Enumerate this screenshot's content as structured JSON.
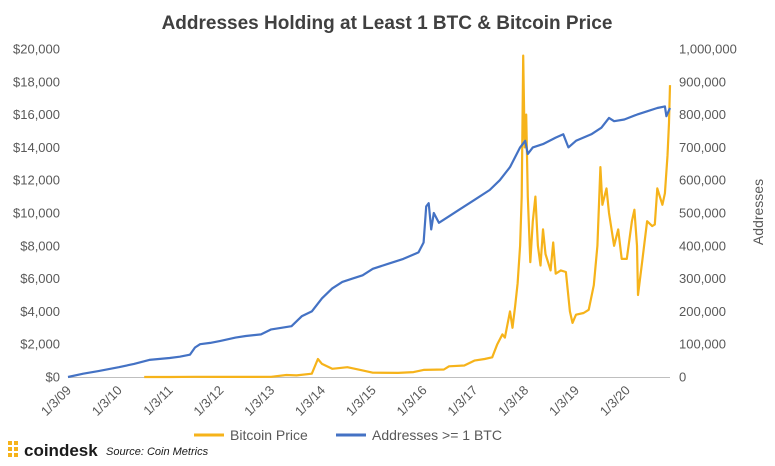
{
  "brand": {
    "name": "coindesk",
    "source": "Source: Coin Metrics",
    "logo_icon": "coindesk-logo-icon",
    "logo_color": "#f6b31a"
  },
  "chart_data": {
    "type": "line",
    "title": "Addresses Holding at Least 1 BTC & Bitcoin Price",
    "xlabel": "",
    "ylabel_left": "",
    "ylabel_right": "Addresses",
    "x_ticks": [
      "1/3/09",
      "1/3/10",
      "1/3/11",
      "1/3/12",
      "1/3/13",
      "1/3/14",
      "1/3/15",
      "1/3/16",
      "1/3/17",
      "1/3/18",
      "1/3/19",
      "1/3/20"
    ],
    "x_range": [
      2009.0,
      2020.85
    ],
    "y_left": {
      "min": 0,
      "max": 20000,
      "step": 2000,
      "tick_labels": [
        "$0",
        "$2,000",
        "$4,000",
        "$6,000",
        "$8,000",
        "$10,000",
        "$12,000",
        "$14,000",
        "$16,000",
        "$18,000",
        "$20,000"
      ]
    },
    "y_right": {
      "min": 0,
      "max": 1000000,
      "step": 100000,
      "tick_labels": [
        "0",
        "100,000",
        "200,000",
        "300,000",
        "400,000",
        "500,000",
        "600,000",
        "700,000",
        "800,000",
        "900,000",
        "1,000,000"
      ]
    },
    "legend": {
      "position": "bottom"
    },
    "grid": false,
    "series": [
      {
        "name": "Bitcoin Price",
        "axis": "left",
        "color": "#f6b31a",
        "points": [
          [
            2010.5,
            0
          ],
          [
            2011.0,
            0
          ],
          [
            2011.5,
            15
          ],
          [
            2012.0,
            5
          ],
          [
            2012.5,
            7
          ],
          [
            2013.0,
            13
          ],
          [
            2013.3,
            120
          ],
          [
            2013.5,
            100
          ],
          [
            2013.8,
            200
          ],
          [
            2013.92,
            1100
          ],
          [
            2014.0,
            800
          ],
          [
            2014.2,
            500
          ],
          [
            2014.5,
            600
          ],
          [
            2014.8,
            400
          ],
          [
            2015.0,
            260
          ],
          [
            2015.5,
            250
          ],
          [
            2015.8,
            300
          ],
          [
            2016.0,
            430
          ],
          [
            2016.4,
            460
          ],
          [
            2016.5,
            650
          ],
          [
            2016.8,
            700
          ],
          [
            2017.0,
            1000
          ],
          [
            2017.2,
            1100
          ],
          [
            2017.35,
            1200
          ],
          [
            2017.45,
            2000
          ],
          [
            2017.55,
            2600
          ],
          [
            2017.6,
            2400
          ],
          [
            2017.7,
            4000
          ],
          [
            2017.75,
            3000
          ],
          [
            2017.8,
            4300
          ],
          [
            2017.85,
            5700
          ],
          [
            2017.9,
            8000
          ],
          [
            2017.93,
            11000
          ],
          [
            2017.96,
            19600
          ],
          [
            2017.99,
            14000
          ],
          [
            2018.02,
            16000
          ],
          [
            2018.05,
            11000
          ],
          [
            2018.1,
            7000
          ],
          [
            2018.15,
            9500
          ],
          [
            2018.2,
            11000
          ],
          [
            2018.25,
            8000
          ],
          [
            2018.3,
            6800
          ],
          [
            2018.35,
            9000
          ],
          [
            2018.4,
            7500
          ],
          [
            2018.5,
            6500
          ],
          [
            2018.55,
            8200
          ],
          [
            2018.6,
            6300
          ],
          [
            2018.7,
            6500
          ],
          [
            2018.8,
            6400
          ],
          [
            2018.88,
            4000
          ],
          [
            2018.93,
            3300
          ],
          [
            2019.0,
            3800
          ],
          [
            2019.15,
            3900
          ],
          [
            2019.25,
            4100
          ],
          [
            2019.35,
            5600
          ],
          [
            2019.42,
            8000
          ],
          [
            2019.48,
            12800
          ],
          [
            2019.52,
            10500
          ],
          [
            2019.6,
            11500
          ],
          [
            2019.65,
            10000
          ],
          [
            2019.75,
            8000
          ],
          [
            2019.83,
            9000
          ],
          [
            2019.9,
            7200
          ],
          [
            2020.0,
            7200
          ],
          [
            2020.1,
            9500
          ],
          [
            2020.15,
            10200
          ],
          [
            2020.2,
            8000
          ],
          [
            2020.22,
            5000
          ],
          [
            2020.3,
            7000
          ],
          [
            2020.4,
            9500
          ],
          [
            2020.5,
            9200
          ],
          [
            2020.55,
            9300
          ],
          [
            2020.6,
            11500
          ],
          [
            2020.7,
            10500
          ],
          [
            2020.75,
            11200
          ],
          [
            2020.8,
            13500
          ],
          [
            2020.83,
            15500
          ],
          [
            2020.85,
            17800
          ]
        ]
      },
      {
        "name": "Addresses >= 1 BTC",
        "axis": "right",
        "color": "#4472c4",
        "points": [
          [
            2009.0,
            0
          ],
          [
            2009.3,
            10000
          ],
          [
            2009.6,
            18000
          ],
          [
            2010.0,
            30000
          ],
          [
            2010.3,
            40000
          ],
          [
            2010.6,
            52000
          ],
          [
            2011.0,
            58000
          ],
          [
            2011.2,
            62000
          ],
          [
            2011.4,
            68000
          ],
          [
            2011.5,
            90000
          ],
          [
            2011.6,
            100000
          ],
          [
            2011.8,
            104000
          ],
          [
            2012.0,
            110000
          ],
          [
            2012.3,
            120000
          ],
          [
            2012.5,
            125000
          ],
          [
            2012.8,
            130000
          ],
          [
            2013.0,
            145000
          ],
          [
            2013.2,
            150000
          ],
          [
            2013.4,
            155000
          ],
          [
            2013.6,
            185000
          ],
          [
            2013.8,
            200000
          ],
          [
            2014.0,
            240000
          ],
          [
            2014.2,
            270000
          ],
          [
            2014.4,
            290000
          ],
          [
            2014.6,
            300000
          ],
          [
            2014.8,
            310000
          ],
          [
            2015.0,
            330000
          ],
          [
            2015.3,
            345000
          ],
          [
            2015.6,
            360000
          ],
          [
            2015.9,
            380000
          ],
          [
            2016.0,
            410000
          ],
          [
            2016.05,
            520000
          ],
          [
            2016.1,
            530000
          ],
          [
            2016.15,
            450000
          ],
          [
            2016.2,
            500000
          ],
          [
            2016.3,
            470000
          ],
          [
            2016.5,
            490000
          ],
          [
            2016.7,
            510000
          ],
          [
            2017.0,
            540000
          ],
          [
            2017.3,
            570000
          ],
          [
            2017.5,
            600000
          ],
          [
            2017.7,
            640000
          ],
          [
            2017.9,
            700000
          ],
          [
            2018.0,
            720000
          ],
          [
            2018.05,
            680000
          ],
          [
            2018.15,
            700000
          ],
          [
            2018.35,
            710000
          ],
          [
            2018.6,
            730000
          ],
          [
            2018.75,
            740000
          ],
          [
            2018.85,
            700000
          ],
          [
            2019.0,
            720000
          ],
          [
            2019.3,
            740000
          ],
          [
            2019.5,
            760000
          ],
          [
            2019.65,
            790000
          ],
          [
            2019.75,
            780000
          ],
          [
            2019.95,
            785000
          ],
          [
            2020.2,
            800000
          ],
          [
            2020.4,
            810000
          ],
          [
            2020.6,
            820000
          ],
          [
            2020.75,
            825000
          ],
          [
            2020.78,
            795000
          ],
          [
            2020.85,
            820000
          ]
        ]
      }
    ]
  }
}
